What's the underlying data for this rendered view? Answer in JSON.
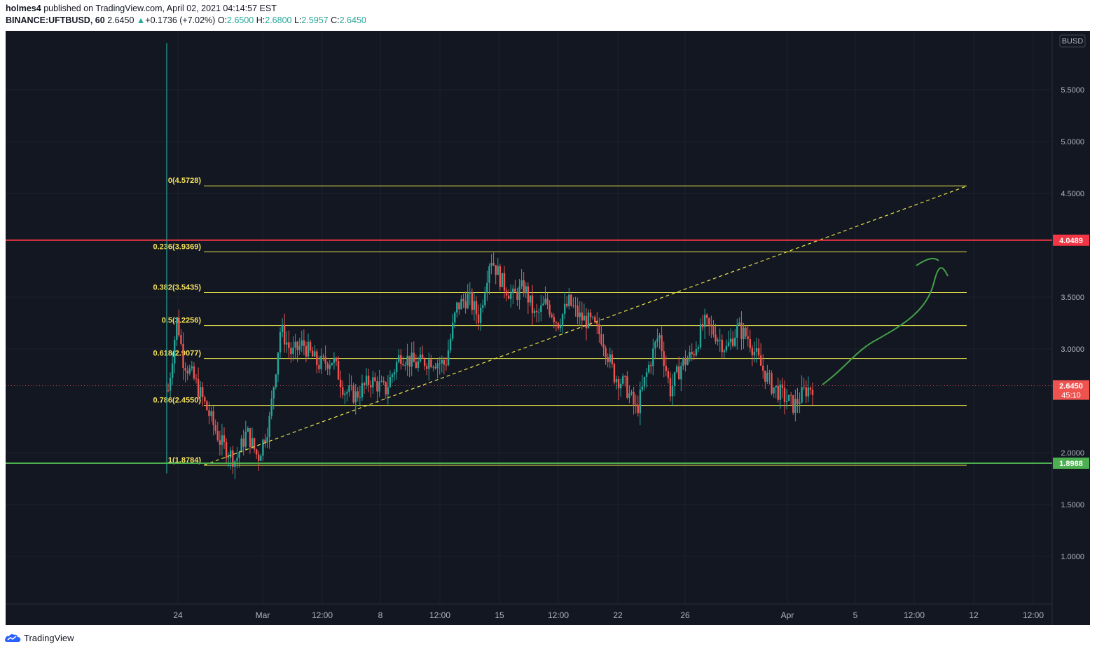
{
  "header": {
    "author": "holmes4",
    "published_text": "published on TradingView.com, April 02, 2021 04:14:57 EST",
    "symbol": "BINANCE:UFTBUSD, 60",
    "last": "2.6450",
    "change": "+0.1736 (+7.02%)",
    "o_label": "O:",
    "o": "2.6500",
    "h_label": "H:",
    "h": "2.6800",
    "l_label": "L:",
    "l": "2.5957",
    "c_label": "C:",
    "c": "2.6450"
  },
  "footer": {
    "brand": "TradingView"
  },
  "colors": {
    "background": "#131722",
    "grid": "#1e222d",
    "up": "#26a69a",
    "down": "#ef5350",
    "fib": "#e8e44b",
    "fib_label": "#f5e25a",
    "resistance": "#f23645",
    "support": "#4caf50",
    "arrow": "#43a047"
  },
  "chart_data": {
    "type": "candlestick",
    "symbol": "BINANCE:UFTBUSD",
    "interval": "60",
    "currency_label": "BUSD",
    "y_ticks": [
      "5.5000",
      "5.0000",
      "4.5000",
      "3.5000",
      "3.0000",
      "2.0000",
      "1.5000",
      "1.0000"
    ],
    "x_ticks": [
      "24",
      "Mar",
      "12:00",
      "8",
      "12:00",
      "15",
      "12:00",
      "22",
      "26",
      "Apr",
      "5",
      "12:00",
      "12",
      "12:00"
    ],
    "fib_levels": [
      {
        "ratio": "0",
        "price": "4.5728",
        "label": "0(4.5728)"
      },
      {
        "ratio": "0.236",
        "price": "3.9369",
        "label": "0.236(3.9369)"
      },
      {
        "ratio": "0.382",
        "price": "3.5435",
        "label": "0.382(3.5435)"
      },
      {
        "ratio": "0.5",
        "price": "3.2256",
        "label": "0.5(3.2256)"
      },
      {
        "ratio": "0.618",
        "price": "2.9077",
        "label": "0.618(2.9077)"
      },
      {
        "ratio": "0.786",
        "price": "2.4550",
        "label": "0.786(2.4550)"
      },
      {
        "ratio": "1",
        "price": "1.8784",
        "label": "1(1.8784)"
      }
    ],
    "resistance": {
      "price": 4.0489,
      "label": "4.0489"
    },
    "support": {
      "price": 1.8988,
      "label": "1.8988"
    },
    "last_price": {
      "price": 2.645,
      "label": "2.6450",
      "countdown": "45:10"
    },
    "trendline": {
      "from_price": 1.88,
      "to_price": 4.57
    },
    "price_path": [
      [
        0,
        2.6
      ],
      [
        0.012,
        3.3
      ],
      [
        0.02,
        2.9
      ],
      [
        0.035,
        2.7
      ],
      [
        0.05,
        2.45
      ],
      [
        0.07,
        2.1
      ],
      [
        0.09,
        1.92
      ],
      [
        0.105,
        2.2
      ],
      [
        0.12,
        1.95
      ],
      [
        0.135,
        2.3
      ],
      [
        0.15,
        3.2
      ],
      [
        0.165,
        2.95
      ],
      [
        0.18,
        3.05
      ],
      [
        0.2,
        2.85
      ],
      [
        0.22,
        2.9
      ],
      [
        0.235,
        2.6
      ],
      [
        0.25,
        2.55
      ],
      [
        0.27,
        2.7
      ],
      [
        0.29,
        2.6
      ],
      [
        0.31,
        2.95
      ],
      [
        0.33,
        2.85
      ],
      [
        0.35,
        2.9
      ],
      [
        0.37,
        2.85
      ],
      [
        0.385,
        3.4
      ],
      [
        0.4,
        3.5
      ],
      [
        0.415,
        3.3
      ],
      [
        0.43,
        3.9
      ],
      [
        0.445,
        3.65
      ],
      [
        0.46,
        3.5
      ],
      [
        0.475,
        3.6
      ],
      [
        0.49,
        3.3
      ],
      [
        0.505,
        3.45
      ],
      [
        0.52,
        3.25
      ],
      [
        0.535,
        3.45
      ],
      [
        0.55,
        3.3
      ],
      [
        0.565,
        3.25
      ],
      [
        0.58,
        3.1
      ],
      [
        0.595,
        2.75
      ],
      [
        0.61,
        2.65
      ],
      [
        0.625,
        2.4
      ],
      [
        0.64,
        2.8
      ],
      [
        0.655,
        3.15
      ],
      [
        0.67,
        2.6
      ],
      [
        0.685,
        2.85
      ],
      [
        0.7,
        2.95
      ],
      [
        0.715,
        3.25
      ],
      [
        0.73,
        3.15
      ],
      [
        0.745,
        3.0
      ],
      [
        0.76,
        3.2
      ],
      [
        0.775,
        3.1
      ],
      [
        0.79,
        2.85
      ],
      [
        0.805,
        2.65
      ],
      [
        0.82,
        2.55
      ],
      [
        0.835,
        2.45
      ],
      [
        0.85,
        2.6
      ],
      [
        0.86,
        2.645
      ]
    ]
  }
}
